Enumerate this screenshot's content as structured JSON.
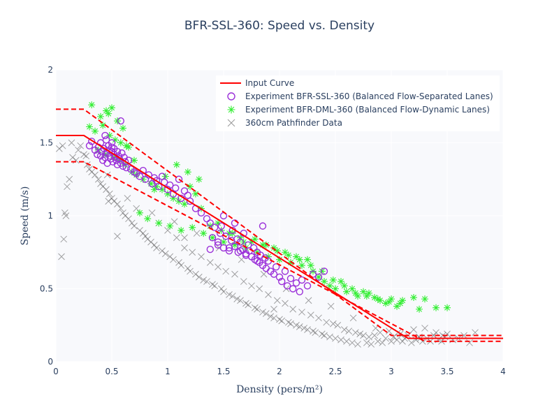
{
  "chart_data": {
    "type": "scatter",
    "title": "BFR-SSL-360: Speed vs. Density",
    "xlabel": "Density (pers/m²)",
    "ylabel": "Speed (m/s)",
    "xlim": [
      0,
      4
    ],
    "ylim": [
      0,
      2
    ],
    "xticks": [
      0,
      0.5,
      1,
      1.5,
      2,
      2.5,
      3,
      3.5,
      4
    ],
    "yticks": [
      0,
      0.5,
      1,
      1.5,
      2
    ],
    "xtick_labels": [
      "0",
      "0.5",
      "1",
      "1.5",
      "2",
      "2.5",
      "3",
      "3.5",
      "4"
    ],
    "ytick_labels": [
      "0",
      "0.5",
      "1",
      "1.5",
      "2"
    ],
    "grid": true,
    "legend_position": "top-right",
    "colors": {
      "input_curve": "#ff0000",
      "ssl": "#9b30d9",
      "dml": "#33ee33",
      "pathfinder": "#555555",
      "plot_bg": "#f8f9fc",
      "grid": "#ffffff",
      "text": "#2a3f5f"
    },
    "curves": {
      "input": {
        "x": [
          0,
          0.25,
          3.15,
          4
        ],
        "y": [
          1.55,
          1.55,
          0.16,
          0.16
        ]
      },
      "upper": {
        "x": [
          0,
          0.25,
          3.0,
          4
        ],
        "y": [
          1.73,
          1.73,
          0.18,
          0.18
        ]
      },
      "lower": {
        "x": [
          0,
          0.25,
          3.3,
          4
        ],
        "y": [
          1.37,
          1.37,
          0.14,
          0.14
        ]
      }
    },
    "series": [
      {
        "name": "Input Curve",
        "kind": "line",
        "x": [
          0,
          0.25,
          3.15,
          4
        ],
        "y": [
          1.55,
          1.55,
          0.16,
          0.16
        ]
      },
      {
        "name": "Experiment BFR-SSL-360 (Balanced Flow-Separated Lanes)",
        "kind": "circle",
        "x": [
          0.3,
          0.32,
          0.35,
          0.37,
          0.38,
          0.4,
          0.4,
          0.41,
          0.42,
          0.43,
          0.44,
          0.45,
          0.45,
          0.46,
          0.47,
          0.48,
          0.48,
          0.49,
          0.5,
          0.5,
          0.51,
          0.52,
          0.52,
          0.53,
          0.54,
          0.55,
          0.55,
          0.56,
          0.57,
          0.58,
          0.59,
          0.6,
          0.61,
          0.62,
          0.63,
          0.65,
          0.58,
          0.44,
          0.5,
          0.67,
          0.7,
          0.72,
          0.75,
          0.78,
          0.8,
          0.83,
          0.86,
          0.88,
          0.9,
          0.92,
          0.95,
          0.97,
          1.0,
          1.02,
          1.05,
          1.07,
          1.1,
          1.12,
          1.15,
          1.18,
          1.2,
          1.25,
          1.3,
          1.35,
          1.38,
          1.4,
          1.42,
          1.45,
          1.47,
          1.48,
          1.5,
          1.52,
          1.55,
          1.57,
          1.58,
          1.6,
          1.62,
          1.63,
          1.65,
          1.67,
          1.68,
          1.7,
          1.72,
          1.73,
          1.75,
          1.77,
          1.78,
          1.8,
          1.82,
          1.83,
          1.85,
          1.87,
          1.88,
          1.9,
          1.92,
          1.95,
          1.97,
          2.0,
          2.02,
          2.05,
          2.07,
          2.1,
          2.12,
          2.15,
          2.18,
          2.2,
          2.25,
          2.3,
          2.35,
          2.4,
          1.45,
          1.55,
          1.65,
          1.75,
          1.85,
          1.38,
          1.6,
          1.7,
          1.8,
          1.5
        ],
        "y": [
          1.48,
          1.51,
          1.45,
          1.42,
          1.47,
          1.41,
          1.5,
          1.44,
          1.38,
          1.46,
          1.4,
          1.43,
          1.52,
          1.36,
          1.48,
          1.41,
          1.45,
          1.39,
          1.5,
          1.44,
          1.37,
          1.46,
          1.42,
          1.4,
          1.38,
          1.44,
          1.35,
          1.41,
          1.39,
          1.36,
          1.43,
          1.34,
          1.4,
          1.37,
          1.33,
          1.38,
          1.65,
          1.55,
          1.47,
          1.32,
          1.3,
          1.29,
          1.27,
          1.31,
          1.25,
          1.28,
          1.22,
          1.26,
          1.24,
          1.2,
          1.27,
          1.23,
          1.18,
          1.21,
          1.15,
          1.19,
          1.25,
          1.12,
          1.17,
          1.14,
          1.1,
          1.05,
          1.02,
          0.98,
          0.95,
          0.85,
          0.92,
          0.8,
          0.88,
          0.93,
          0.78,
          0.86,
          0.76,
          0.83,
          0.9,
          0.79,
          0.84,
          0.75,
          0.82,
          0.77,
          0.88,
          0.74,
          0.8,
          0.76,
          0.72,
          0.78,
          0.7,
          0.75,
          0.68,
          0.73,
          0.66,
          0.71,
          0.64,
          0.69,
          0.62,
          0.6,
          0.65,
          0.58,
          0.55,
          0.62,
          0.52,
          0.57,
          0.5,
          0.54,
          0.48,
          0.56,
          0.52,
          0.6,
          0.58,
          0.62,
          0.82,
          0.78,
          0.76,
          0.72,
          0.93,
          0.77,
          0.95,
          0.73,
          0.69,
          1.0
        ]
      },
      {
        "name": "Experiment BFR-DML-360 (Balanced Flow-Dynamic Lanes)",
        "kind": "asterisk",
        "x": [
          0.32,
          0.4,
          0.45,
          0.5,
          0.55,
          0.6,
          0.35,
          0.42,
          0.48,
          0.53,
          0.58,
          0.63,
          0.38,
          0.44,
          0.52,
          0.57,
          0.62,
          0.68,
          0.72,
          0.78,
          0.85,
          0.9,
          0.95,
          1.0,
          1.05,
          1.1,
          1.15,
          1.2,
          1.25,
          1.3,
          0.75,
          0.82,
          0.92,
          1.02,
          1.12,
          1.22,
          1.32,
          1.4,
          1.45,
          1.5,
          1.55,
          1.6,
          1.65,
          1.7,
          1.75,
          1.8,
          1.85,
          1.9,
          1.95,
          2.0,
          2.05,
          2.1,
          2.15,
          2.2,
          2.25,
          2.3,
          2.35,
          2.4,
          2.45,
          2.5,
          2.55,
          2.6,
          2.65,
          2.7,
          2.75,
          2.8,
          2.85,
          2.9,
          2.95,
          3.0,
          3.05,
          3.1,
          3.2,
          3.25,
          3.3,
          3.4,
          3.5,
          1.08,
          1.18,
          1.28,
          1.38,
          1.48,
          1.58,
          1.68,
          1.78,
          1.88,
          1.98,
          2.08,
          2.18,
          2.28,
          2.38,
          2.48,
          2.58,
          2.68,
          2.78,
          2.88,
          2.98,
          3.08,
          0.3,
          0.47,
          0.65,
          0.88,
          0.7,
          0.98
        ],
        "y": [
          1.76,
          1.68,
          1.72,
          1.74,
          1.65,
          1.6,
          1.58,
          1.62,
          1.55,
          1.52,
          1.5,
          1.48,
          1.45,
          1.42,
          1.4,
          1.38,
          1.35,
          1.3,
          1.28,
          1.25,
          1.22,
          1.2,
          1.18,
          1.15,
          1.12,
          1.1,
          1.08,
          1.2,
          1.15,
          1.05,
          1.02,
          0.98,
          0.95,
          0.93,
          0.9,
          0.92,
          0.88,
          0.85,
          0.95,
          0.82,
          0.88,
          0.8,
          0.85,
          0.78,
          0.82,
          0.75,
          0.8,
          0.72,
          0.78,
          0.7,
          0.75,
          0.68,
          0.72,
          0.66,
          0.7,
          0.62,
          0.58,
          0.55,
          0.52,
          0.5,
          0.55,
          0.48,
          0.5,
          0.45,
          0.48,
          0.47,
          0.44,
          0.42,
          0.4,
          0.43,
          0.38,
          0.42,
          0.44,
          0.36,
          0.43,
          0.37,
          0.37,
          1.35,
          1.3,
          1.25,
          0.93,
          0.9,
          0.88,
          0.82,
          0.84,
          0.8,
          0.76,
          0.73,
          0.7,
          0.66,
          0.62,
          0.56,
          0.52,
          0.47,
          0.45,
          0.43,
          0.41,
          0.4,
          1.61,
          1.7,
          1.47,
          1.18,
          1.38,
          1.27
        ]
      },
      {
        "name": "360cm Pathfinder Data",
        "kind": "x",
        "x": [
          0.05,
          0.07,
          0.08,
          0.1,
          0.12,
          0.15,
          0.18,
          0.2,
          0.22,
          0.25,
          0.28,
          0.3,
          0.32,
          0.35,
          0.38,
          0.4,
          0.42,
          0.45,
          0.48,
          0.5,
          0.52,
          0.55,
          0.58,
          0.6,
          0.62,
          0.65,
          0.68,
          0.7,
          0.72,
          0.75,
          0.78,
          0.8,
          0.82,
          0.85,
          0.88,
          0.9,
          0.92,
          0.95,
          0.98,
          1.0,
          1.02,
          1.05,
          1.08,
          1.1,
          1.12,
          1.15,
          1.18,
          1.2,
          1.22,
          1.25,
          1.28,
          1.3,
          1.32,
          1.35,
          1.38,
          1.4,
          1.42,
          1.45,
          1.48,
          1.5,
          1.52,
          1.55,
          1.58,
          1.6,
          1.62,
          1.65,
          1.68,
          1.7,
          1.72,
          1.75,
          1.78,
          1.8,
          1.82,
          1.85,
          1.88,
          1.9,
          1.92,
          1.95,
          1.98,
          2.0,
          2.02,
          2.05,
          2.08,
          2.1,
          2.12,
          2.15,
          2.18,
          2.2,
          2.22,
          2.25,
          2.28,
          2.3,
          2.32,
          2.35,
          2.38,
          2.4,
          2.42,
          2.45,
          2.48,
          2.5,
          2.52,
          2.55,
          2.58,
          2.6,
          2.62,
          2.65,
          2.68,
          2.7,
          2.72,
          2.75,
          2.78,
          2.8,
          2.82,
          2.85,
          2.88,
          2.9,
          2.92,
          2.95,
          2.98,
          3.0,
          3.02,
          3.05,
          3.08,
          3.1,
          3.12,
          3.15,
          3.18,
          3.2,
          3.22,
          3.25,
          3.28,
          3.3,
          3.32,
          3.35,
          3.38,
          3.4,
          3.42,
          3.45,
          3.48,
          3.5,
          3.55,
          3.6,
          3.65,
          3.7,
          3.75,
          0.03,
          0.06,
          0.09,
          0.14,
          0.27,
          0.46,
          0.64,
          0.86,
          1.06,
          1.26,
          1.46,
          1.66,
          1.86,
          2.06,
          2.26,
          2.46,
          2.66,
          2.86,
          3.06,
          3.26,
          3.46,
          0.55,
          1.15,
          0.47,
          1.95
        ],
        "y": [
          0.72,
          0.84,
          1.02,
          1.2,
          1.25,
          1.4,
          1.38,
          1.45,
          1.48,
          1.42,
          1.35,
          1.32,
          1.3,
          1.28,
          1.25,
          1.22,
          1.2,
          1.18,
          1.15,
          1.12,
          1.1,
          1.08,
          1.05,
          1.02,
          1.0,
          0.98,
          0.95,
          0.93,
          1.05,
          0.9,
          0.88,
          0.86,
          0.84,
          0.82,
          0.8,
          0.78,
          0.95,
          0.76,
          0.74,
          0.9,
          0.72,
          0.7,
          0.85,
          0.68,
          0.66,
          0.78,
          0.64,
          0.62,
          0.75,
          0.6,
          0.58,
          0.72,
          0.56,
          0.55,
          0.68,
          0.53,
          0.52,
          0.65,
          0.5,
          0.48,
          0.62,
          0.46,
          0.45,
          0.6,
          0.43,
          0.42,
          0.55,
          0.4,
          0.39,
          0.52,
          0.37,
          0.36,
          0.5,
          0.34,
          0.33,
          0.46,
          0.31,
          0.3,
          0.42,
          0.29,
          0.28,
          0.4,
          0.27,
          0.26,
          0.36,
          0.25,
          0.24,
          0.34,
          0.23,
          0.22,
          0.32,
          0.21,
          0.2,
          0.3,
          0.19,
          0.18,
          0.27,
          0.17,
          0.26,
          0.16,
          0.25,
          0.15,
          0.22,
          0.14,
          0.21,
          0.13,
          0.2,
          0.12,
          0.19,
          0.18,
          0.13,
          0.17,
          0.12,
          0.18,
          0.14,
          0.2,
          0.13,
          0.16,
          0.21,
          0.14,
          0.17,
          0.15,
          0.19,
          0.14,
          0.16,
          0.18,
          0.13,
          0.22,
          0.15,
          0.17,
          0.14,
          0.23,
          0.16,
          0.14,
          0.18,
          0.2,
          0.15,
          0.14,
          0.17,
          0.19,
          0.15,
          0.16,
          0.18,
          0.13,
          0.2,
          1.46,
          1.48,
          1.0,
          1.5,
          1.41,
          1.28,
          1.12,
          1.02,
          0.96,
          0.88,
          0.78,
          0.7,
          0.6,
          0.5,
          0.42,
          0.38,
          0.3,
          0.23,
          0.2,
          0.16,
          0.18,
          0.86,
          0.85,
          1.1,
          0.36
        ]
      }
    ]
  }
}
